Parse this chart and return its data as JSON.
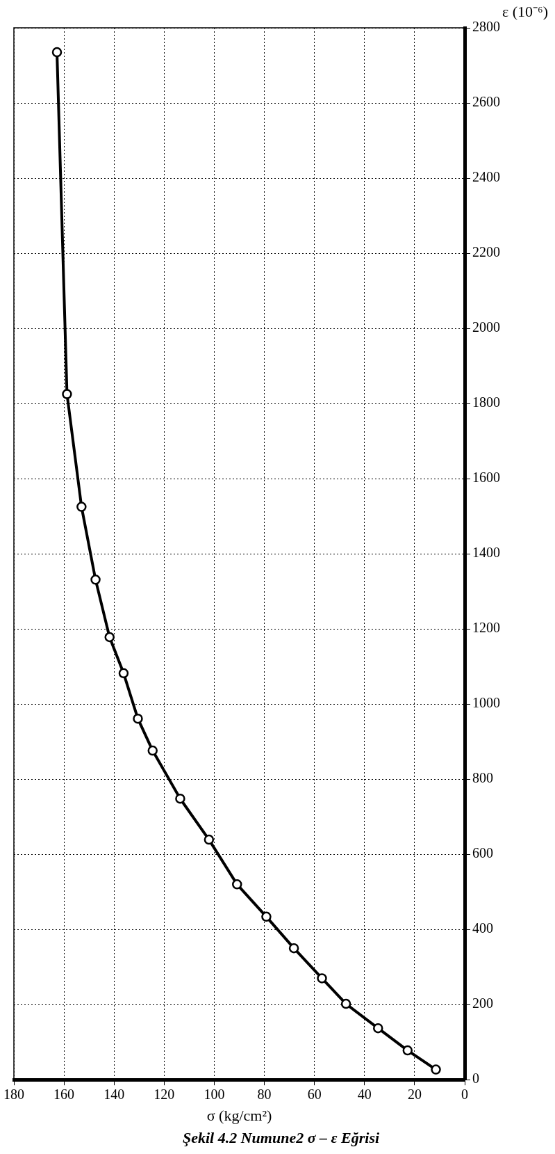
{
  "chart_data": {
    "type": "line",
    "title": "Şekil 4.2 Numune2 σ – ε Eğrisi",
    "xlabel": "σ (kg/cm²)",
    "ylabel": "ε (10⁻⁶)",
    "x": [
      11.5,
      22.8,
      34.6,
      47.4,
      57.0,
      68.2,
      79.2,
      90.9,
      102.1,
      113.6,
      124.6,
      130.5,
      136.2,
      141.8,
      147.4,
      153.0,
      158.8,
      162.8
    ],
    "series": [
      {
        "color": "#000000",
        "values": [
          27,
          78,
          137,
          202,
          270,
          350,
          434,
          520,
          639,
          748,
          876,
          961,
          1082,
          1178,
          1331,
          1525,
          1825,
          2735
        ]
      }
    ],
    "xlim": [
      180,
      0
    ],
    "xticks": [
      180,
      160,
      140,
      120,
      100,
      80,
      60,
      40,
      20,
      0
    ],
    "ylim": [
      0,
      2800
    ],
    "yticks": [
      0,
      200,
      400,
      600,
      800,
      1000,
      1200,
      1400,
      1600,
      1800,
      2000,
      2200,
      2400,
      2600,
      2800
    ],
    "grid": true,
    "legend": false,
    "marker": "circle",
    "line_style": "solid"
  }
}
